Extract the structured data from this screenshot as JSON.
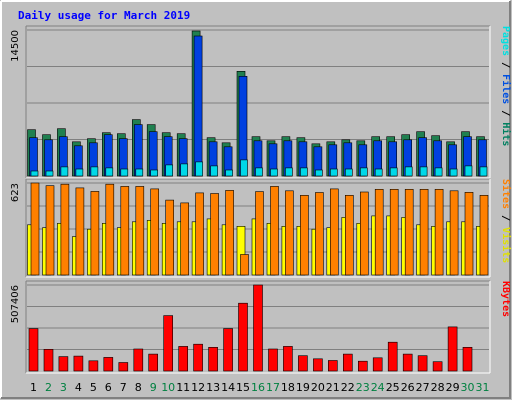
{
  "chart_data": {
    "type": "bar",
    "title": "Daily usage for March 2019",
    "categories": [
      "1",
      "2",
      "3",
      "4",
      "5",
      "6",
      "7",
      "8",
      "9",
      "10",
      "11",
      "12",
      "13",
      "14",
      "15",
      "16",
      "17",
      "18",
      "19",
      "20",
      "21",
      "22",
      "23",
      "24",
      "25",
      "26",
      "27",
      "28",
      "29",
      "30",
      "31"
    ],
    "weekend_days": [
      "2",
      "3",
      "9",
      "10",
      "16",
      "17",
      "23",
      "24",
      "30",
      "31"
    ],
    "panels": [
      {
        "id": "hits-panel",
        "max_label": "14500",
        "ymax": 14500,
        "legend": [
          {
            "text": "Pages",
            "color": "#00e0e0"
          },
          {
            "text": " / ",
            "color": "#000000"
          },
          {
            "text": "Files",
            "color": "#0050e0"
          },
          {
            "text": " / ",
            "color": "#000000"
          },
          {
            "text": "Hits",
            "color": "#008060"
          }
        ],
        "series": [
          {
            "name": "Hits",
            "color": "#208050",
            "values": [
              4600,
              4100,
              4700,
              3400,
              3700,
              4300,
              4200,
              5600,
              5100,
              4300,
              4200,
              14400,
              3800,
              3300,
              10400,
              3900,
              3500,
              3900,
              3800,
              3200,
              3400,
              3600,
              3500,
              3900,
              3900,
              4100,
              4400,
              4000,
              3400,
              4400,
              3900
            ]
          },
          {
            "name": "Files",
            "color": "#0040e0",
            "values": [
              3800,
              3600,
              3900,
              3000,
              3300,
              4100,
              3700,
              5100,
              4400,
              3900,
              3700,
              13900,
              3400,
              2900,
              9900,
              3500,
              3200,
              3500,
              3400,
              2900,
              3100,
              3300,
              3100,
              3500,
              3400,
              3600,
              3800,
              3500,
              3100,
              3900,
              3600
            ]
          },
          {
            "name": "Pages",
            "color": "#00d8e8",
            "values": [
              500,
              500,
              900,
              700,
              900,
              800,
              700,
              700,
              600,
              1100,
              1200,
              1400,
              1000,
              600,
              1600,
              800,
              700,
              800,
              800,
              600,
              700,
              700,
              800,
              700,
              800,
              900,
              900,
              800,
              700,
              1000,
              900
            ]
          }
        ]
      },
      {
        "id": "visits-panel",
        "max_label": "623",
        "ymax": 623,
        "legend": [
          {
            "text": "Sites",
            "color": "#ff8000"
          },
          {
            "text": " / ",
            "color": "#000000"
          },
          {
            "text": "Visits",
            "color": "#e0e000"
          }
        ],
        "series": [
          {
            "name": "Visits",
            "color": "#ffff00",
            "values": [
              340,
              320,
              350,
              260,
              310,
              350,
              320,
              360,
              370,
              350,
              360,
              360,
              380,
              340,
              330,
              380,
              350,
              330,
              330,
              310,
              320,
              390,
              350,
              400,
              400,
              390,
              340,
              330,
              360,
              360,
              330
            ]
          },
          {
            "name": "Sites",
            "color": "#ff8000",
            "values": [
              623,
              605,
              615,
              590,
              566,
              615,
              600,
              600,
              583,
              507,
              488,
              556,
              552,
              573,
              139,
              565,
              600,
              570,
              540,
              559,
              583,
              540,
              562,
              580,
              580,
              580,
              580,
              580,
              570,
              560,
              540
            ]
          }
        ]
      },
      {
        "id": "kbytes-panel",
        "max_label": "507406",
        "ymax": 507406,
        "legend": [
          {
            "text": "KBytes",
            "color": "#ff0000"
          }
        ],
        "series": [
          {
            "name": "KBytes",
            "color": "#ff0000",
            "values": [
              250000,
              128000,
              85000,
              88000,
              60000,
              80000,
              50000,
              130000,
              100000,
              327000,
              145000,
              158000,
              140000,
              250000,
              400000,
              507406,
              130000,
              145000,
              90000,
              72000,
              62000,
              100000,
              58000,
              78000,
              170000,
              100000,
              90000,
              55000,
              260000,
              140000,
              0
            ]
          }
        ]
      }
    ]
  }
}
